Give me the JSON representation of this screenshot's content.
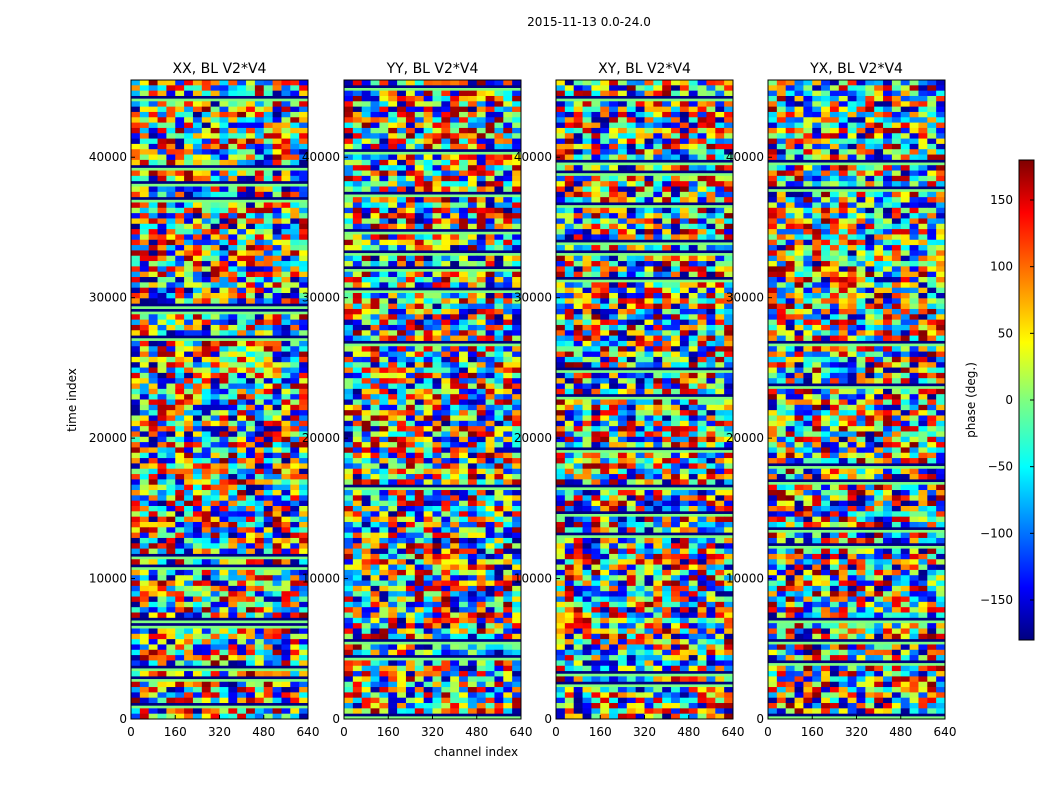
{
  "chart_data": {
    "type": "heatmap",
    "title": "2015-11-13 0.0-24.0",
    "xlabel": "channel index",
    "ylabel": "time index",
    "xlim": [
      0,
      640
    ],
    "ylim": [
      0,
      45500
    ],
    "x_ticks": [
      "0",
      "160",
      "320",
      "480",
      "640"
    ],
    "y_ticks": [
      "0",
      "10000",
      "20000",
      "30000",
      "40000"
    ],
    "panels": [
      {
        "title": "XX, BL V2*V4"
      },
      {
        "title": "YY, BL V2*V4"
      },
      {
        "title": "XY, BL V2*V4"
      },
      {
        "title": "YX, BL V2*V4"
      }
    ],
    "colorbar": {
      "label": "phase (deg.)",
      "range": [
        -180,
        180
      ],
      "ticks": [
        "150",
        "100",
        "50",
        "0",
        "−50",
        "−100",
        "−150"
      ],
      "colormap": "jet"
    }
  }
}
